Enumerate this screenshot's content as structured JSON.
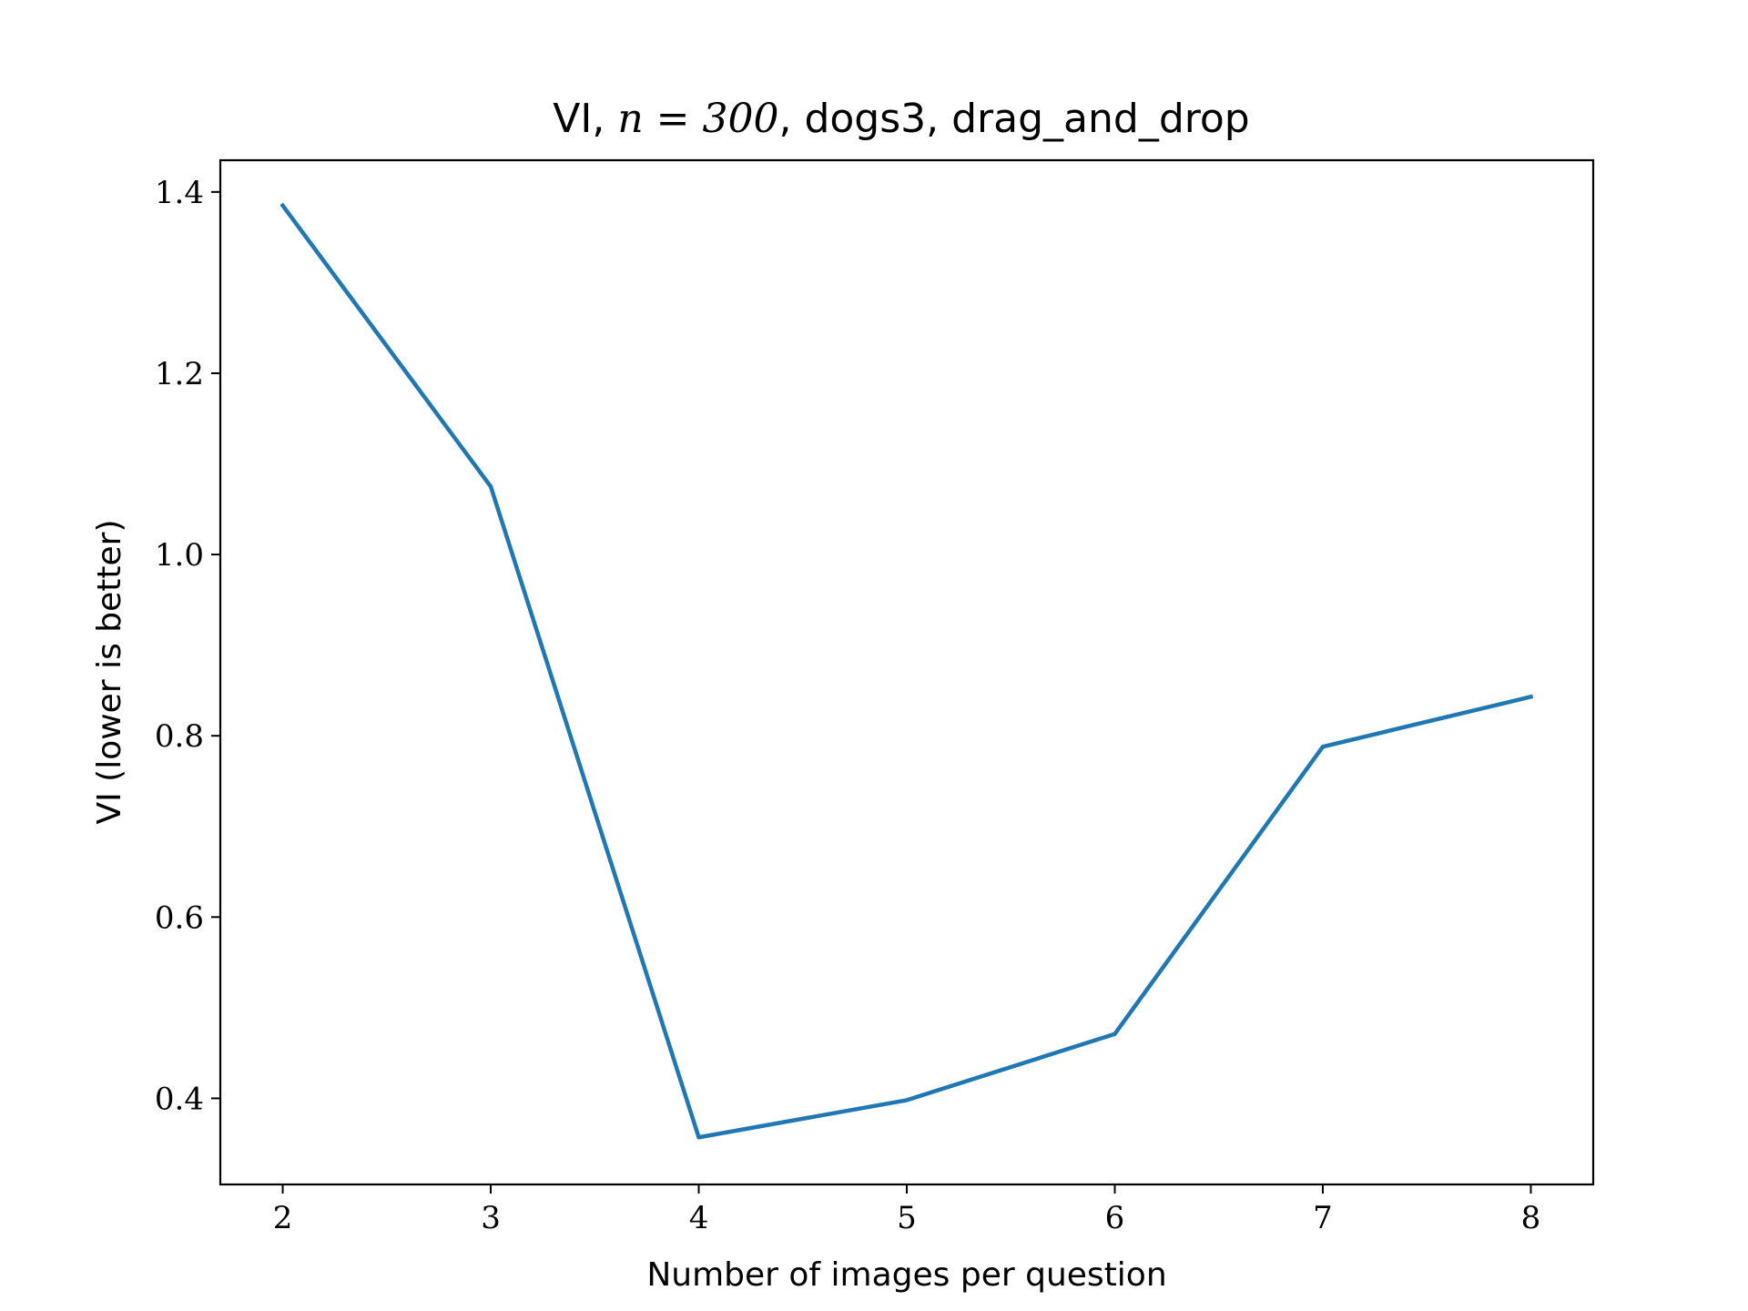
{
  "chart_data": {
    "type": "line",
    "title": {
      "prefix": "VI, ",
      "math": "n = 300",
      "suffix": ", dogs3, drag_and_drop"
    },
    "xlabel": "Number of images per question",
    "ylabel": "VI (lower is better)",
    "x": [
      2,
      3,
      4,
      5,
      6,
      7,
      8
    ],
    "series": [
      {
        "values": [
          1.385,
          1.075,
          0.357,
          0.398,
          0.471,
          0.788,
          0.843
        ],
        "color": "#1f77b4"
      }
    ],
    "xticks": [
      2,
      3,
      4,
      5,
      6,
      7,
      8
    ],
    "xtick_labels": [
      "2",
      "3",
      "4",
      "5",
      "6",
      "7",
      "8"
    ],
    "yticks": [
      0.4,
      0.6,
      0.8,
      1.0,
      1.2,
      1.4
    ],
    "ytick_labels": [
      "0.4",
      "0.6",
      "0.8",
      "1.0",
      "1.2",
      "1.4"
    ],
    "xlim": [
      1.7,
      8.3
    ],
    "ylim": [
      0.305,
      1.435
    ],
    "grid": false,
    "legend": "none"
  }
}
